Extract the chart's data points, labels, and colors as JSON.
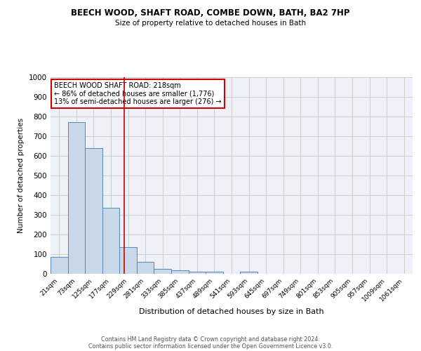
{
  "title": "BEECH WOOD, SHAFT ROAD, COMBE DOWN, BATH, BA2 7HP",
  "subtitle": "Size of property relative to detached houses in Bath",
  "xlabel": "Distribution of detached houses by size in Bath",
  "ylabel": "Number of detached properties",
  "bin_labels": [
    "21sqm",
    "73sqm",
    "125sqm",
    "177sqm",
    "229sqm",
    "281sqm",
    "333sqm",
    "385sqm",
    "437sqm",
    "489sqm",
    "541sqm",
    "593sqm",
    "645sqm",
    "697sqm",
    "749sqm",
    "801sqm",
    "853sqm",
    "905sqm",
    "957sqm",
    "1009sqm",
    "1061sqm"
  ],
  "bar_values": [
    85,
    770,
    640,
    335,
    135,
    60,
    25,
    18,
    12,
    10,
    0,
    12,
    0,
    0,
    0,
    0,
    0,
    0,
    0,
    0,
    0
  ],
  "bar_color": "#c8d8e8",
  "bar_edge_color": "#5588bb",
  "vline_color": "#cc0000",
  "ylim": [
    0,
    1000
  ],
  "yticks": [
    0,
    100,
    200,
    300,
    400,
    500,
    600,
    700,
    800,
    900,
    1000
  ],
  "annotation_title": "BEECH WOOD SHAFT ROAD: 218sqm",
  "annotation_line1": "← 86% of detached houses are smaller (1,776)",
  "annotation_line2": "13% of semi-detached houses are larger (276) →",
  "annotation_box_color": "#ffffff",
  "annotation_box_edge": "#cc0000",
  "grid_color": "#cccccc",
  "bg_color": "#eef2f8",
  "footer1": "Contains HM Land Registry data © Crown copyright and database right 2024.",
  "footer2": "Contains public sector information licensed under the Open Government Licence v3.0."
}
